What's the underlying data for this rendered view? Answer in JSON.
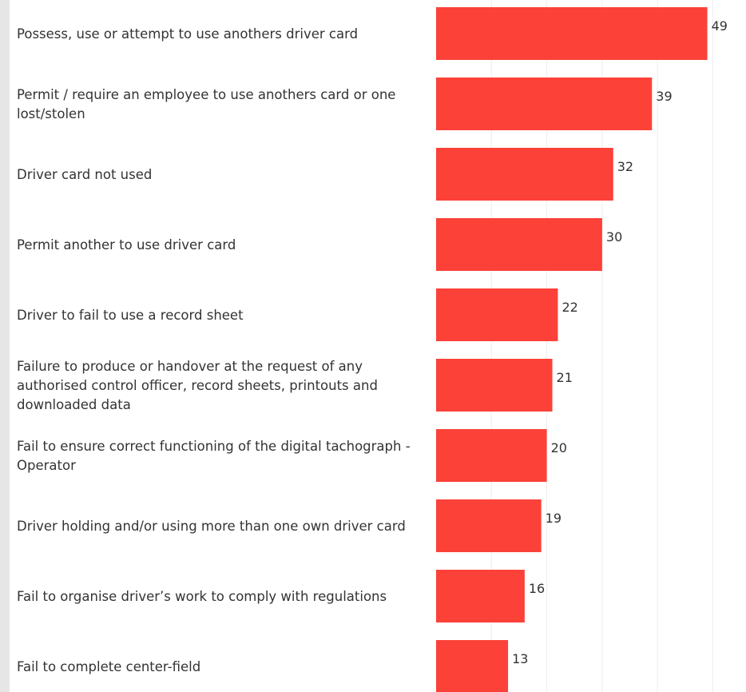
{
  "chart_data": {
    "type": "bar",
    "orientation": "horizontal",
    "title": "",
    "xlabel": "",
    "ylabel": "",
    "xlim": [
      0,
      50
    ],
    "grid": true,
    "bar_color": "#fc4138",
    "categories": [
      "Possess, use or attempt to use anothers driver card",
      "Permit / require an employee to use anothers card or one lost/stolen",
      "Driver card not used",
      "Permit another to use driver card",
      "Driver to fail to use a record sheet",
      "Failure to produce or handover at the request of any authorised control officer, record sheets, printouts and downloaded data",
      "Fail to ensure correct functioning of the digital tachograph - Operator",
      "Driver holding and/or using more than one own driver card",
      "Fail to organise driver’s work to comply with regulations",
      "Fail to complete center-field"
    ],
    "values": [
      49,
      39,
      32,
      30,
      22,
      21,
      20,
      19,
      16,
      13
    ]
  }
}
